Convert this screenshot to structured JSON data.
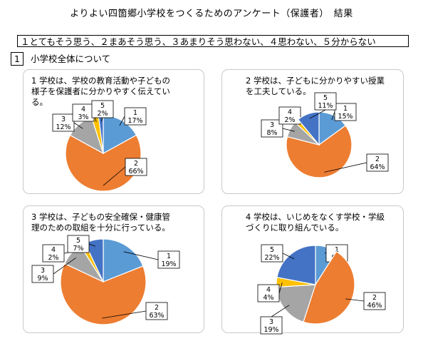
{
  "title": "よりよい四箇郷小学校をつくるためのアンケート（保護者）　結果",
  "scale_legend": "１とてもそう思う、２まあそう思う、３あまりそう思わない、４思わない、５分からない",
  "section": {
    "number": "1",
    "label": "小学校全体について"
  },
  "colors": {
    "1": "#5b9bd5",
    "2": "#ed7d31",
    "3": "#a5a5a5",
    "4": "#ffc000",
    "5": "#4472c4"
  },
  "chart_data": [
    {
      "type": "pie",
      "question": "1 学校は、学校の教育活動や子どもの\n様子を保護者に分かりやすく伝えてい\nる。",
      "slices": [
        {
          "label": "1",
          "value": 17
        },
        {
          "label": "2",
          "value": 66
        },
        {
          "label": "3",
          "value": 12
        },
        {
          "label": "4",
          "value": 3
        },
        {
          "label": "5",
          "value": 2
        }
      ]
    },
    {
      "type": "pie",
      "question": "2 学校は、子どもに分かりやすい授業\nを工夫している。",
      "slices": [
        {
          "label": "1",
          "value": 15
        },
        {
          "label": "2",
          "value": 64
        },
        {
          "label": "3",
          "value": 8
        },
        {
          "label": "4",
          "value": 2
        },
        {
          "label": "5",
          "value": 11
        }
      ]
    },
    {
      "type": "pie",
      "question": "3 学校は、子どもの安全確保・健康管\n理のための取組を十分に行っている。",
      "slices": [
        {
          "label": "1",
          "value": 19
        },
        {
          "label": "2",
          "value": 63
        },
        {
          "label": "3",
          "value": 9
        },
        {
          "label": "4",
          "value": 2
        },
        {
          "label": "5",
          "value": 7
        }
      ]
    },
    {
      "type": "pie",
      "question": "4 学校は、いじめをなくす学校・学級\nづくりに取り組んでいる。",
      "slices": [
        {
          "label": "1",
          "value": 9
        },
        {
          "label": "2",
          "value": 46
        },
        {
          "label": "3",
          "value": 19
        },
        {
          "label": "4",
          "value": 4
        },
        {
          "label": "5",
          "value": 22
        }
      ]
    }
  ]
}
